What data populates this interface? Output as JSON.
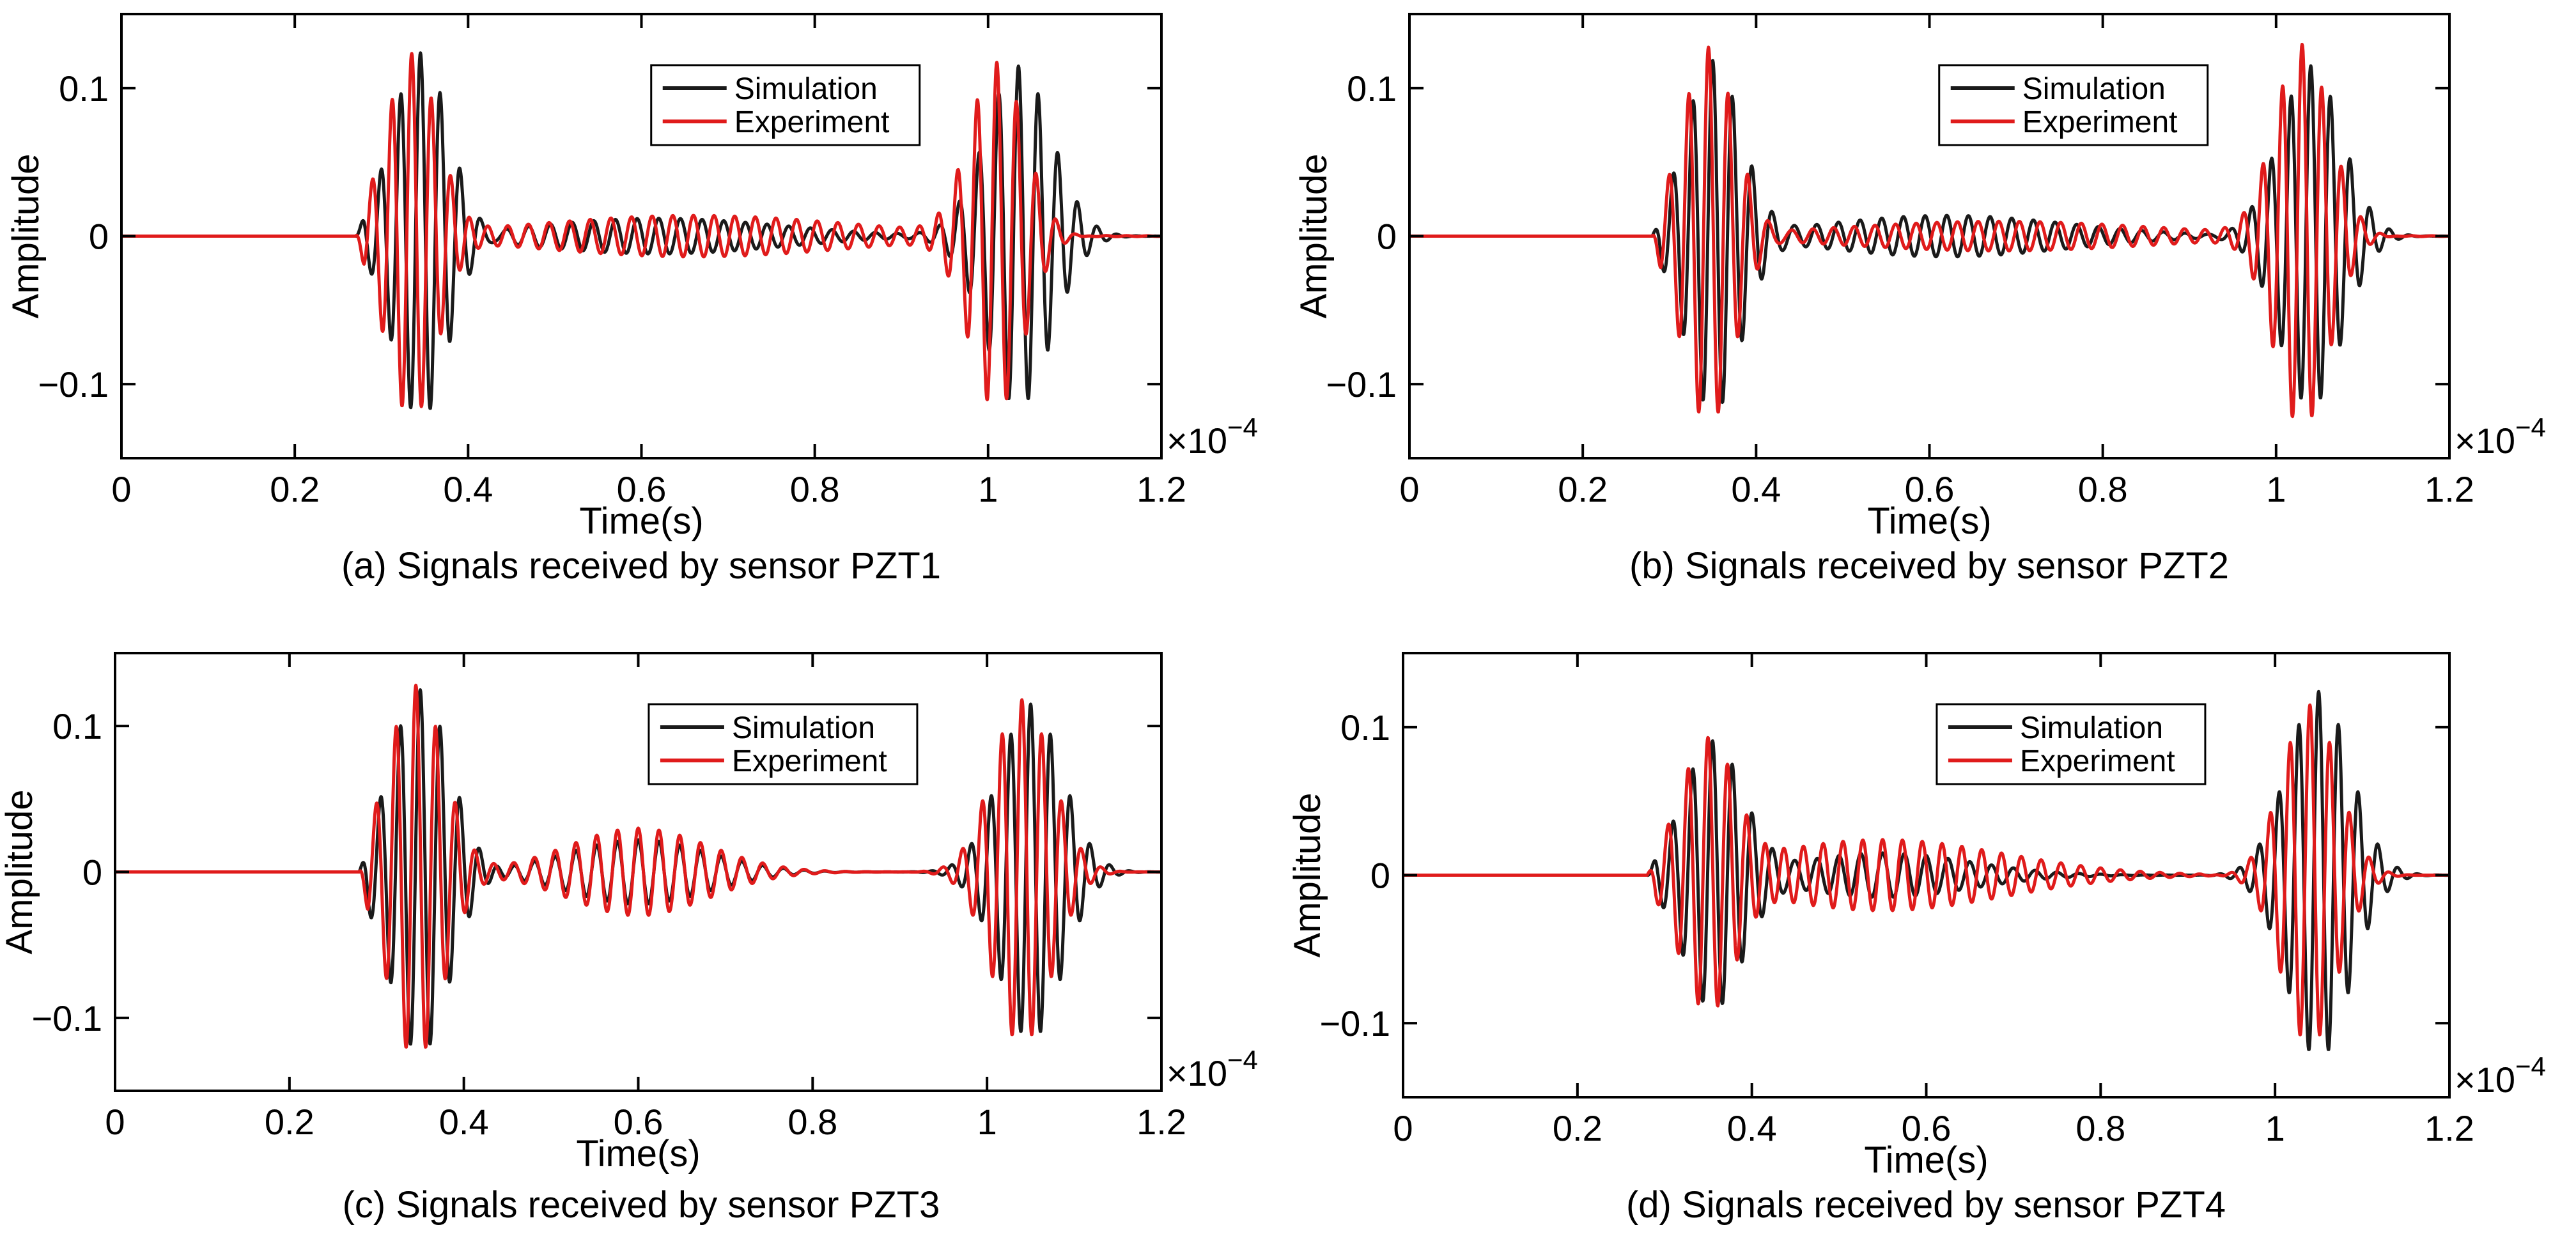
{
  "figure": {
    "legend": {
      "series": [
        "Simulation",
        "Experiment"
      ]
    }
  },
  "colors": {
    "simulation": "#1a1a1a",
    "experiment": "#e01b1b",
    "axis": "#000000"
  },
  "chart_data": [
    {
      "type": "line",
      "title": "(a) Signals received by sensor PZT1",
      "xlabel": "Time(s)",
      "ylabel": "Amplitude",
      "x_multiplier": "×10^-4",
      "x_exponent_base": "×10",
      "x_exponent": "−4",
      "xlim": [
        0,
        0.00012
      ],
      "ylim": [
        -0.15,
        0.15
      ],
      "xticks": [
        0,
        0.2,
        0.4,
        0.6,
        0.8,
        1,
        1.2
      ],
      "xtick_labels": [
        "0",
        "0.2",
        "0.4",
        "0.6",
        "0.8",
        "1",
        "1.2"
      ],
      "yticks": [
        -0.1,
        0,
        0.1
      ],
      "ytick_labels": [
        "−0.1",
        "0",
        "0.1"
      ],
      "legend_position": "top-right",
      "series": [
        {
          "name": "Simulation",
          "onset": 2.7e-05,
          "packets": [
            {
              "center": 3.45e-05,
              "amp": 0.122,
              "sigma": 3.2e-06,
              "freq": 440000
            },
            {
              "center": 0.0001035,
              "amp": 0.115,
              "sigma": 3.8e-06,
              "freq": 440000
            },
            {
              "center": 6.2e-05,
              "amp": 0.012,
              "sigma": 1.4e-05,
              "freq": 400000
            }
          ]
        },
        {
          "name": "Experiment",
          "onset": 2.7e-05,
          "packets": [
            {
              "center": 3.35e-05,
              "amp": 0.125,
              "sigma": 3e-06,
              "freq": 440000
            },
            {
              "center": 0.000101,
              "amp": 0.118,
              "sigma": 3.2e-06,
              "freq": 440000
            },
            {
              "center": 6.6e-05,
              "amp": 0.014,
              "sigma": 1.8e-05,
              "freq": 420000
            }
          ]
        }
      ]
    },
    {
      "type": "line",
      "title": "(b) Signals received by sensor PZT2",
      "xlabel": "Time(s)",
      "ylabel": "Amplitude",
      "x_multiplier": "×10^-4",
      "x_exponent_base": "×10",
      "x_exponent": "−4",
      "xlim": [
        0,
        0.00012
      ],
      "ylim": [
        -0.15,
        0.15
      ],
      "xticks": [
        0,
        0.2,
        0.4,
        0.6,
        0.8,
        1,
        1.2
      ],
      "xtick_labels": [
        "0",
        "0.2",
        "0.4",
        "0.6",
        "0.8",
        "1",
        "1.2"
      ],
      "yticks": [
        -0.1,
        0,
        0.1
      ],
      "ytick_labels": [
        "−0.1",
        "0",
        "0.1"
      ],
      "legend_position": "top-right",
      "series": [
        {
          "name": "Simulation",
          "onset": 2.8e-05,
          "packets": [
            {
              "center": 3.5e-05,
              "amp": 0.118,
              "sigma": 3.2e-06,
              "freq": 440000
            },
            {
              "center": 0.000104,
              "amp": 0.115,
              "sigma": 3.6e-06,
              "freq": 440000
            },
            {
              "center": 6.2e-05,
              "amp": 0.014,
              "sigma": 1.4e-05,
              "freq": 400000
            }
          ]
        },
        {
          "name": "Experiment",
          "onset": 2.8e-05,
          "packets": [
            {
              "center": 3.45e-05,
              "amp": 0.126,
              "sigma": 3e-06,
              "freq": 440000
            },
            {
              "center": 0.000103,
              "amp": 0.13,
              "sigma": 3.2e-06,
              "freq": 440000
            },
            {
              "center": 6.8e-05,
              "amp": 0.01,
              "sigma": 1.8e-05,
              "freq": 420000
            }
          ]
        }
      ]
    },
    {
      "type": "line",
      "title": "(c) Signals received by sensor PZT3",
      "xlabel": "Time(s)",
      "ylabel": "Amplitude",
      "x_multiplier": "×10^-4",
      "x_exponent_base": "×10",
      "x_exponent": "−4",
      "xlim": [
        0,
        0.00012
      ],
      "ylim": [
        -0.15,
        0.15
      ],
      "xticks": [
        0,
        0.2,
        0.4,
        0.6,
        0.8,
        1,
        1.2
      ],
      "xtick_labels": [
        "0",
        "0.2",
        "0.4",
        "0.6",
        "0.8",
        "1",
        "1.2"
      ],
      "yticks": [
        -0.1,
        0,
        0.1
      ],
      "ytick_labels": [
        "−0.1",
        "0",
        "0.1"
      ],
      "legend_position": "top-right",
      "series": [
        {
          "name": "Simulation",
          "onset": 2.8e-05,
          "packets": [
            {
              "center": 3.5e-05,
              "amp": 0.125,
              "sigma": 3.4e-06,
              "freq": 440000
            },
            {
              "center": 0.000105,
              "amp": 0.115,
              "sigma": 3.6e-06,
              "freq": 440000
            },
            {
              "center": 6e-05,
              "amp": 0.022,
              "sigma": 8e-06,
              "freq": 420000
            }
          ]
        },
        {
          "name": "Experiment",
          "onset": 2.8e-05,
          "packets": [
            {
              "center": 3.45e-05,
              "amp": 0.128,
              "sigma": 3.2e-06,
              "freq": 440000
            },
            {
              "center": 0.000104,
              "amp": 0.118,
              "sigma": 3.4e-06,
              "freq": 440000
            },
            {
              "center": 6e-05,
              "amp": 0.03,
              "sigma": 8e-06,
              "freq": 420000
            }
          ]
        }
      ]
    },
    {
      "type": "line",
      "title": "(d) Signals received by sensor PZT4",
      "xlabel": "Time(s)",
      "ylabel": "Amplitude",
      "x_multiplier": "×10^-4",
      "x_exponent_base": "×10",
      "x_exponent": "−4",
      "xlim": [
        0,
        0.00012
      ],
      "ylim": [
        -0.15,
        0.15
      ],
      "xticks": [
        0,
        0.2,
        0.4,
        0.6,
        0.8,
        1,
        1.2
      ],
      "xtick_labels": [
        "0",
        "0.2",
        "0.4",
        "0.6",
        "0.8",
        "1",
        "1.2"
      ],
      "yticks": [
        -0.1,
        0,
        0.1
      ],
      "ytick_labels": [
        "−0.1",
        "0",
        "0.1"
      ],
      "legend_position": "top-right",
      "series": [
        {
          "name": "Simulation",
          "onset": 2.8e-05,
          "packets": [
            {
              "center": 3.55e-05,
              "amp": 0.09,
              "sigma": 3.4e-06,
              "freq": 440000
            },
            {
              "center": 0.000105,
              "amp": 0.124,
              "sigma": 3.6e-06,
              "freq": 440000
            },
            {
              "center": 5.5e-05,
              "amp": 0.015,
              "sigma": 1e-05,
              "freq": 400000
            }
          ]
        },
        {
          "name": "Experiment",
          "onset": 2.8e-05,
          "packets": [
            {
              "center": 3.5e-05,
              "amp": 0.09,
              "sigma": 3.2e-06,
              "freq": 440000
            },
            {
              "center": 0.000104,
              "amp": 0.115,
              "sigma": 3.2e-06,
              "freq": 440000
            },
            {
              "center": 5.5e-05,
              "amp": 0.024,
              "sigma": 1.4e-05,
              "freq": 440000
            }
          ]
        }
      ]
    }
  ]
}
